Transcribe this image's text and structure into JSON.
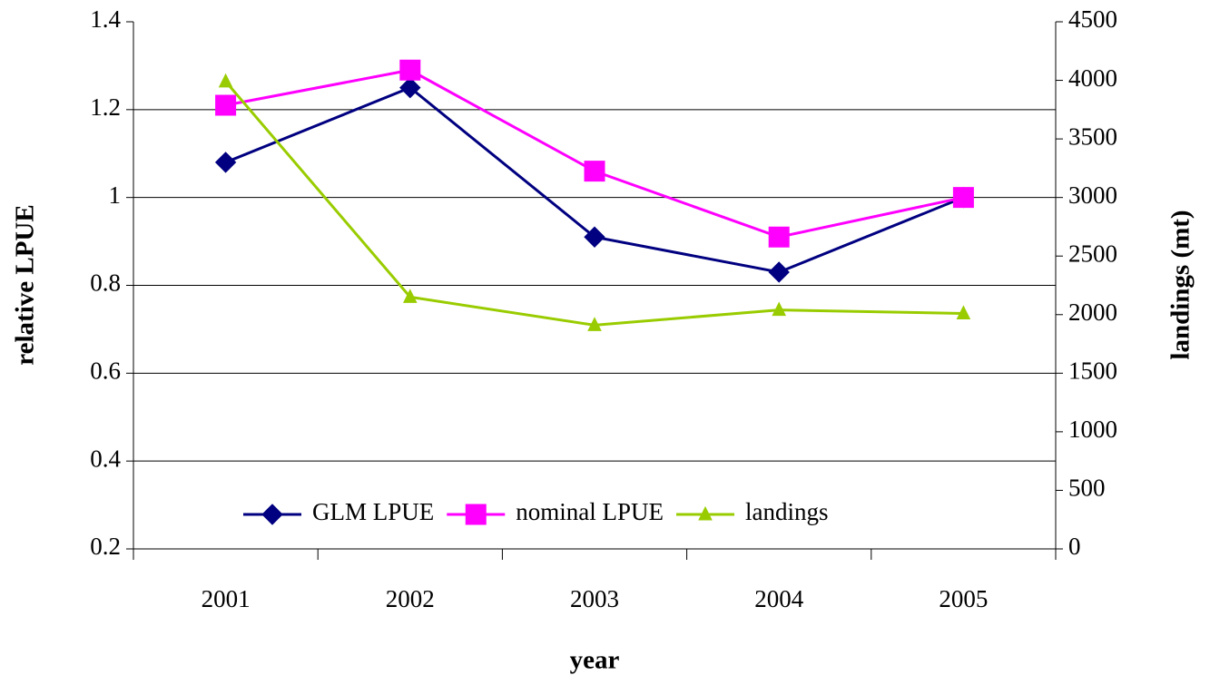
{
  "chart_data": {
    "type": "line",
    "x_label": "year",
    "y_label": "relative LPUE",
    "y2_label": "landings (mt)",
    "categories": [
      "2001",
      "2002",
      "2003",
      "2004",
      "2005"
    ],
    "series": [
      {
        "name": "GLM LPUE",
        "color": "#000080",
        "marker": "diamond",
        "values": [
          1.08,
          1.25,
          0.91,
          0.83,
          1.0
        ]
      },
      {
        "name": "nominal LPUE",
        "color": "#ff00ff",
        "marker": "square",
        "values": [
          1.21,
          1.29,
          1.06,
          0.91,
          1.0
        ]
      },
      {
        "name": "landings",
        "color": "#99cc00",
        "marker": "triangle",
        "axis": "y2",
        "values": [
          3990,
          2150,
          1910,
          2040,
          2010
        ]
      }
    ],
    "ylim": [
      0.2,
      1.4
    ],
    "yticks": [
      0.2,
      0.4,
      0.6,
      0.8,
      1,
      1.2,
      1.4
    ],
    "y2lim": [
      0,
      4500
    ],
    "y2ticks": [
      0,
      500,
      1000,
      1500,
      2000,
      2500,
      3000,
      3500,
      4000,
      4500
    ],
    "grid": true,
    "legend": "bottom"
  }
}
